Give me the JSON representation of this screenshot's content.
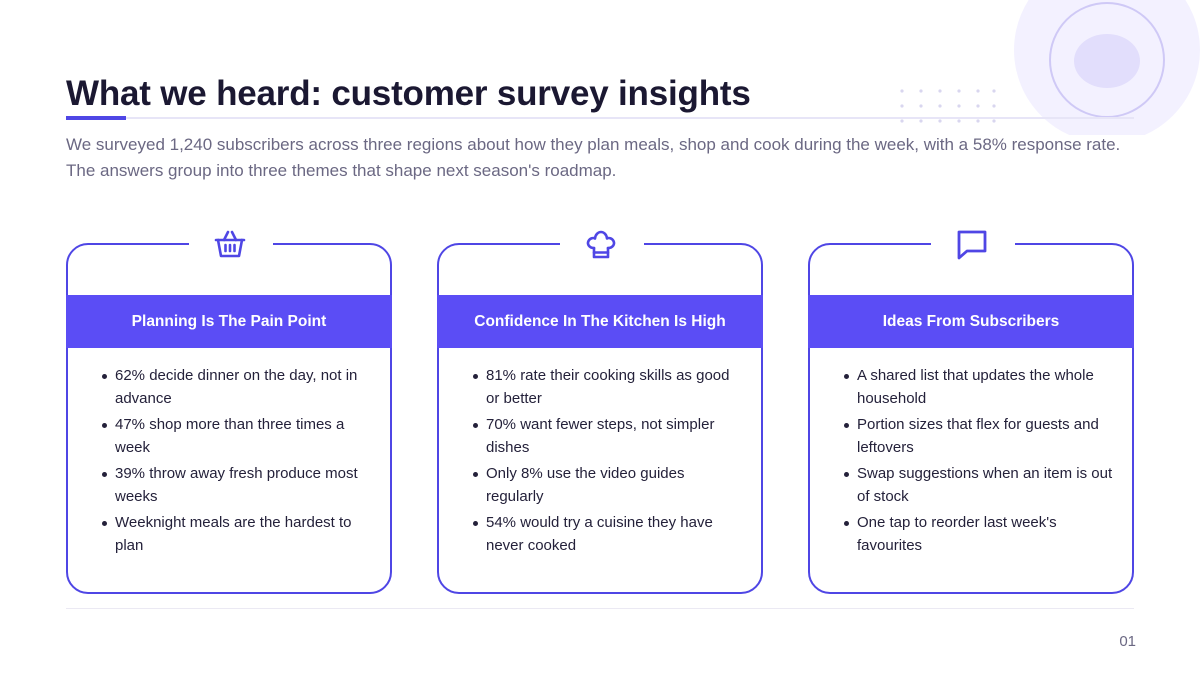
{
  "slide": {
    "title": "What we heard: customer survey insights",
    "intro": "We surveyed 1,240 subscribers across three regions about how they plan meals, shop and cook during the week, with a 58% response rate. The answers group into three themes that shape next season's roadmap.",
    "page_number": "01"
  },
  "colors": {
    "accent": "#4f46e5",
    "band": "#5b4df5",
    "text": "#1b1832",
    "muted": "#6b6883"
  },
  "cards": [
    {
      "icon": "basket-icon",
      "heading": "Planning Is The Pain Point",
      "bullets": [
        "62% decide dinner on the day, not in advance",
        "47% shop more than three times a week",
        "39% throw away fresh produce most weeks",
        "Weeknight meals are the hardest to plan"
      ]
    },
    {
      "icon": "chef-hat-icon",
      "heading": "Confidence In The Kitchen Is High",
      "bullets": [
        "81% rate their cooking skills as good or better",
        "70% want fewer steps, not simpler dishes",
        "Only 8% use the video guides regularly",
        "54% would try a cuisine they have never cooked"
      ]
    },
    {
      "icon": "message-icon",
      "heading": "Ideas From Subscribers",
      "bullets": [
        "A shared list that updates the whole household",
        "Portion sizes that flex for guests and leftovers",
        "Swap suggestions when an item is out of stock",
        "One tap to reorder last week's favourites"
      ]
    }
  ]
}
